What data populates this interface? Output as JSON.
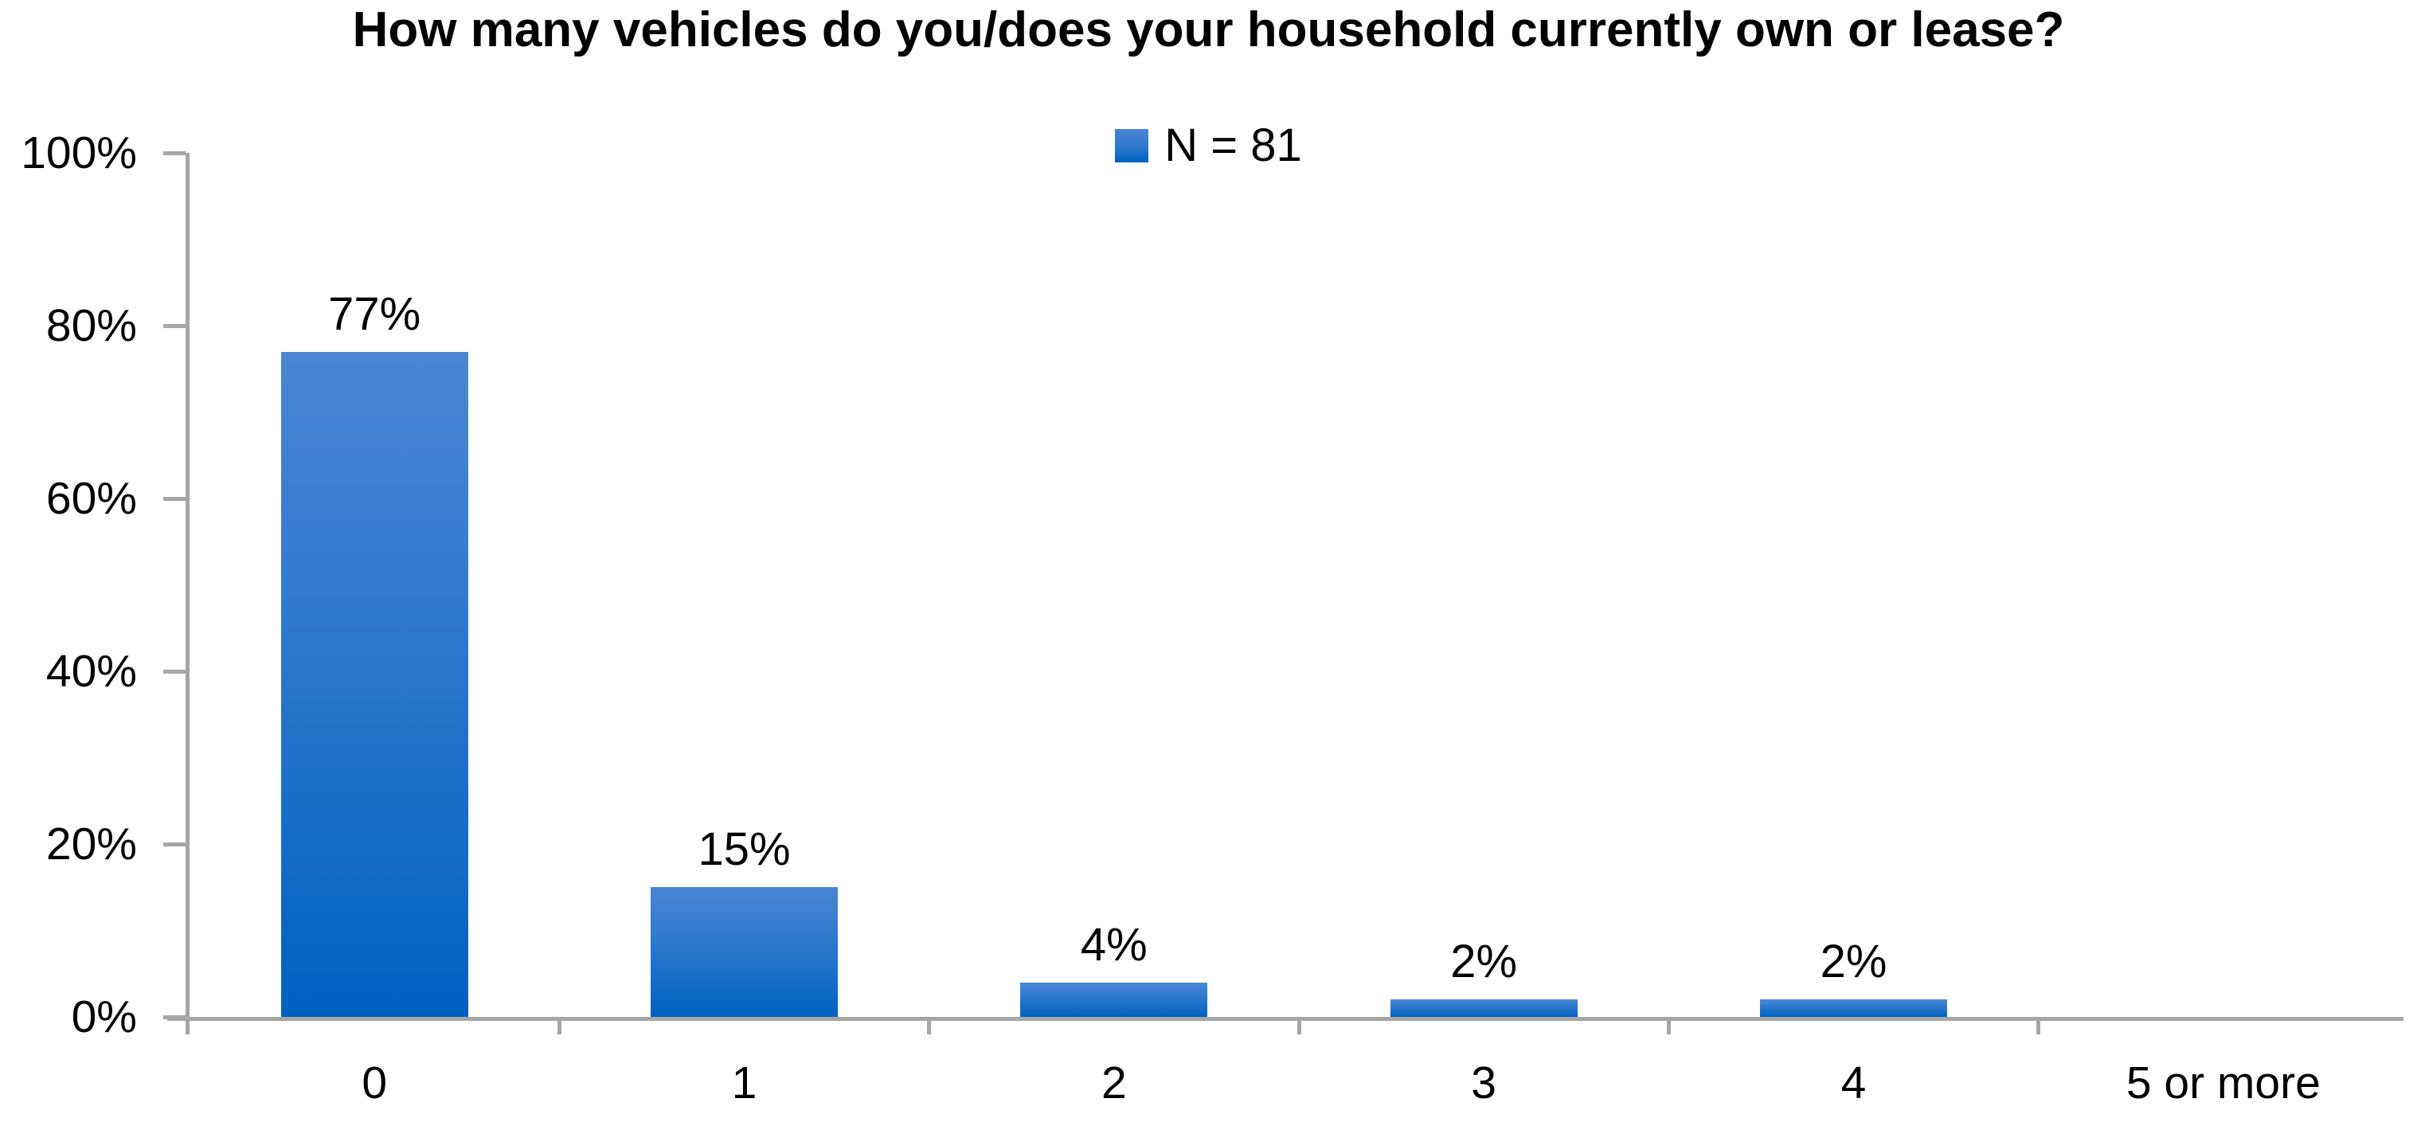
{
  "chart_data": {
    "type": "bar",
    "title": "How many vehicles do you/does your household currently own or lease?",
    "categories": [
      "0",
      "1",
      "2",
      "3",
      "4",
      "5 or more"
    ],
    "values": [
      77,
      15,
      4,
      2,
      2,
      0
    ],
    "data_labels": [
      "77%",
      "15%",
      "4%",
      "2%",
      "2%",
      ""
    ],
    "legend": {
      "label": "N = 81",
      "position": "top-center"
    },
    "xlabel": "",
    "ylabel": "",
    "ylim": [
      0,
      100
    ],
    "y_ticks": [
      "0%",
      "20%",
      "40%",
      "60%",
      "80%",
      "100%"
    ],
    "y_tick_values": [
      0,
      20,
      40,
      60,
      80,
      100
    ],
    "grid": false,
    "legend_visible": true,
    "colors": {
      "bar_gradient_top": "#4a86d3",
      "bar_gradient_mid": "#2b77cd",
      "bar_gradient_bottom": "#0061c1",
      "axis_line": "#a6a6a6",
      "text": "#000000",
      "background": "#ffffff"
    }
  }
}
